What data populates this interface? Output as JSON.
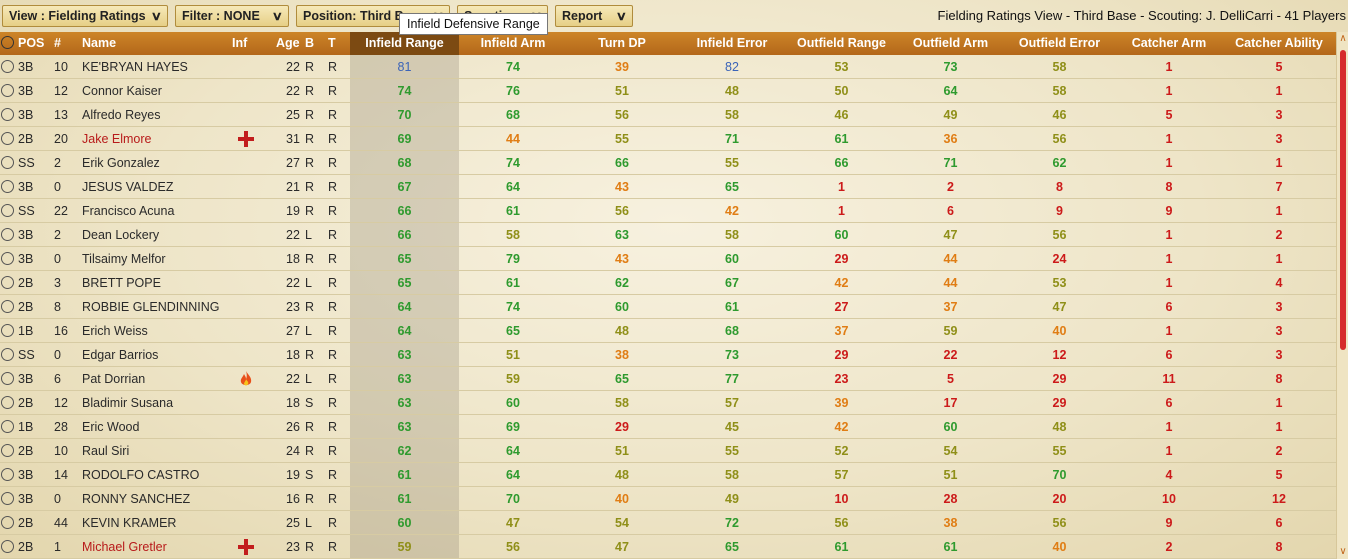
{
  "toolbar": {
    "view_label": "View : Fielding Ratings",
    "filter_label": "Filter : NONE",
    "position_label": "Position: Third Base",
    "scouting_label": "Scouting",
    "report_label": "Report",
    "tooltip": "Infield Defensive Range",
    "view_info": "Fielding Ratings View - Third Base - Scouting: J. DelliCarri - 41 Players"
  },
  "colors": {
    "green": "#2e9a2e",
    "olive": "#8f8f18",
    "orange": "#e07d14",
    "red": "#cc1a1a",
    "blue": "#3b64b8",
    "header": "#c17623",
    "sorted_header": "#7c4a12"
  },
  "columns": [
    "POS",
    "#",
    "Name",
    "Inf",
    "Age",
    "B",
    "T",
    "Infield Range",
    "Infield Arm",
    "Turn DP",
    "Infield Error",
    "Outfield Range",
    "Outfield Arm",
    "Outfield Error",
    "Catcher Arm",
    "Catcher Ability"
  ],
  "players": [
    {
      "pos": "3B",
      "num": "10",
      "name": "KE'BRYAN HAYES",
      "inf": "",
      "age": "22",
      "b": "R",
      "t": "R",
      "vals": [
        81,
        74,
        39,
        82,
        53,
        73,
        58,
        1,
        5
      ],
      "cls": [
        "b",
        "g",
        "o",
        "b",
        "l",
        "g",
        "l",
        "r",
        "r"
      ]
    },
    {
      "pos": "3B",
      "num": "12",
      "name": "Connor Kaiser",
      "inf": "",
      "age": "22",
      "b": "R",
      "t": "R",
      "vals": [
        74,
        76,
        51,
        48,
        50,
        64,
        58,
        1,
        1
      ],
      "cls": [
        "g",
        "g",
        "l",
        "l",
        "l",
        "g",
        "l",
        "r",
        "r"
      ]
    },
    {
      "pos": "3B",
      "num": "13",
      "name": "Alfredo Reyes",
      "inf": "",
      "age": "25",
      "b": "R",
      "t": "R",
      "vals": [
        70,
        68,
        56,
        58,
        46,
        49,
        46,
        5,
        3
      ],
      "cls": [
        "g",
        "g",
        "l",
        "l",
        "l",
        "l",
        "l",
        "r",
        "r"
      ]
    },
    {
      "pos": "2B",
      "num": "20",
      "name": "Jake Elmore",
      "inf": "injury",
      "age": "31",
      "b": "R",
      "t": "R",
      "vals": [
        69,
        44,
        55,
        71,
        61,
        36,
        56,
        1,
        3
      ],
      "cls": [
        "g",
        "o",
        "l",
        "g",
        "g",
        "o",
        "l",
        "r",
        "r"
      ]
    },
    {
      "pos": "SS",
      "num": "2",
      "name": "Erik Gonzalez",
      "inf": "",
      "age": "27",
      "b": "R",
      "t": "R",
      "vals": [
        68,
        74,
        66,
        55,
        66,
        71,
        62,
        1,
        1
      ],
      "cls": [
        "g",
        "g",
        "g",
        "l",
        "g",
        "g",
        "g",
        "r",
        "r"
      ]
    },
    {
      "pos": "3B",
      "num": "0",
      "name": "JESUS VALDEZ",
      "inf": "",
      "age": "21",
      "b": "R",
      "t": "R",
      "vals": [
        67,
        64,
        43,
        65,
        1,
        2,
        8,
        8,
        7
      ],
      "cls": [
        "g",
        "g",
        "o",
        "g",
        "r",
        "r",
        "r",
        "r",
        "r"
      ]
    },
    {
      "pos": "SS",
      "num": "22",
      "name": "Francisco Acuna",
      "inf": "",
      "age": "19",
      "b": "R",
      "t": "R",
      "vals": [
        66,
        61,
        56,
        42,
        1,
        6,
        9,
        9,
        1
      ],
      "cls": [
        "g",
        "g",
        "l",
        "o",
        "r",
        "r",
        "r",
        "r",
        "r"
      ]
    },
    {
      "pos": "3B",
      "num": "2",
      "name": "Dean Lockery",
      "inf": "",
      "age": "22",
      "b": "L",
      "t": "R",
      "vals": [
        66,
        58,
        63,
        58,
        60,
        47,
        56,
        1,
        2
      ],
      "cls": [
        "g",
        "l",
        "g",
        "l",
        "g",
        "l",
        "l",
        "r",
        "r"
      ]
    },
    {
      "pos": "3B",
      "num": "0",
      "name": "Tilsaimy Melfor",
      "inf": "",
      "age": "18",
      "b": "R",
      "t": "R",
      "vals": [
        65,
        79,
        43,
        60,
        29,
        44,
        24,
        1,
        1
      ],
      "cls": [
        "g",
        "g",
        "o",
        "g",
        "r",
        "o",
        "r",
        "r",
        "r"
      ]
    },
    {
      "pos": "2B",
      "num": "3",
      "name": "BRETT POPE",
      "inf": "",
      "age": "22",
      "b": "L",
      "t": "R",
      "vals": [
        65,
        61,
        62,
        67,
        42,
        44,
        53,
        1,
        4
      ],
      "cls": [
        "g",
        "g",
        "g",
        "g",
        "o",
        "o",
        "l",
        "r",
        "r"
      ]
    },
    {
      "pos": "2B",
      "num": "8",
      "name": "ROBBIE GLENDINNING",
      "inf": "",
      "age": "23",
      "b": "R",
      "t": "R",
      "vals": [
        64,
        74,
        60,
        61,
        27,
        37,
        47,
        6,
        3
      ],
      "cls": [
        "g",
        "g",
        "g",
        "g",
        "r",
        "o",
        "l",
        "r",
        "r"
      ]
    },
    {
      "pos": "1B",
      "num": "16",
      "name": "Erich Weiss",
      "inf": "",
      "age": "27",
      "b": "L",
      "t": "R",
      "vals": [
        64,
        65,
        48,
        68,
        37,
        59,
        40,
        1,
        3
      ],
      "cls": [
        "g",
        "g",
        "l",
        "g",
        "o",
        "l",
        "o",
        "r",
        "r"
      ]
    },
    {
      "pos": "SS",
      "num": "0",
      "name": "Edgar Barrios",
      "inf": "",
      "age": "18",
      "b": "R",
      "t": "R",
      "vals": [
        63,
        51,
        38,
        73,
        29,
        22,
        12,
        6,
        3
      ],
      "cls": [
        "g",
        "l",
        "o",
        "g",
        "r",
        "r",
        "r",
        "r",
        "r"
      ]
    },
    {
      "pos": "3B",
      "num": "6",
      "name": "Pat Dorrian",
      "inf": "hot",
      "age": "22",
      "b": "L",
      "t": "R",
      "vals": [
        63,
        59,
        65,
        77,
        23,
        5,
        29,
        11,
        8
      ],
      "cls": [
        "g",
        "l",
        "g",
        "g",
        "r",
        "r",
        "r",
        "r",
        "r"
      ]
    },
    {
      "pos": "2B",
      "num": "12",
      "name": "Bladimir Susana",
      "inf": "",
      "age": "18",
      "b": "S",
      "t": "R",
      "vals": [
        63,
        60,
        58,
        57,
        39,
        17,
        29,
        6,
        1
      ],
      "cls": [
        "g",
        "g",
        "l",
        "l",
        "o",
        "r",
        "r",
        "r",
        "r"
      ]
    },
    {
      "pos": "1B",
      "num": "28",
      "name": "Eric Wood",
      "inf": "",
      "age": "26",
      "b": "R",
      "t": "R",
      "vals": [
        63,
        69,
        29,
        45,
        42,
        60,
        48,
        1,
        1
      ],
      "cls": [
        "g",
        "g",
        "r",
        "l",
        "o",
        "g",
        "l",
        "r",
        "r"
      ]
    },
    {
      "pos": "2B",
      "num": "10",
      "name": "Raul Siri",
      "inf": "",
      "age": "24",
      "b": "R",
      "t": "R",
      "vals": [
        62,
        64,
        51,
        55,
        52,
        54,
        55,
        1,
        2
      ],
      "cls": [
        "g",
        "g",
        "l",
        "l",
        "l",
        "l",
        "l",
        "r",
        "r"
      ]
    },
    {
      "pos": "3B",
      "num": "14",
      "name": "RODOLFO CASTRO",
      "inf": "",
      "age": "19",
      "b": "S",
      "t": "R",
      "vals": [
        61,
        64,
        48,
        58,
        57,
        51,
        70,
        4,
        5
      ],
      "cls": [
        "g",
        "g",
        "l",
        "l",
        "l",
        "l",
        "g",
        "r",
        "r"
      ]
    },
    {
      "pos": "3B",
      "num": "0",
      "name": "RONNY SANCHEZ",
      "inf": "",
      "age": "16",
      "b": "R",
      "t": "R",
      "vals": [
        61,
        70,
        40,
        49,
        10,
        28,
        20,
        10,
        12
      ],
      "cls": [
        "g",
        "g",
        "o",
        "l",
        "r",
        "r",
        "r",
        "r",
        "r"
      ]
    },
    {
      "pos": "2B",
      "num": "44",
      "name": "KEVIN KRAMER",
      "inf": "",
      "age": "25",
      "b": "L",
      "t": "R",
      "vals": [
        60,
        47,
        54,
        72,
        56,
        38,
        56,
        9,
        6
      ],
      "cls": [
        "g",
        "l",
        "l",
        "g",
        "l",
        "o",
        "l",
        "r",
        "r"
      ]
    },
    {
      "pos": "2B",
      "num": "1",
      "name": "Michael Gretler",
      "inf": "injury",
      "age": "23",
      "b": "R",
      "t": "R",
      "vals": [
        59,
        56,
        47,
        65,
        61,
        61,
        40,
        2,
        8
      ],
      "cls": [
        "l",
        "l",
        "l",
        "g",
        "g",
        "g",
        "o",
        "r",
        "r"
      ]
    }
  ]
}
